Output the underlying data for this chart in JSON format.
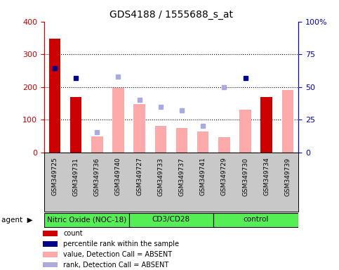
{
  "title": "GDS4188 / 1555688_s_at",
  "samples": [
    "GSM349725",
    "GSM349731",
    "GSM349736",
    "GSM349740",
    "GSM349727",
    "GSM349733",
    "GSM349737",
    "GSM349741",
    "GSM349729",
    "GSM349730",
    "GSM349734",
    "GSM349739"
  ],
  "red_bars": [
    348,
    170,
    0,
    0,
    0,
    0,
    0,
    0,
    0,
    0,
    170,
    0
  ],
  "pink_bars": [
    0,
    0,
    50,
    198,
    148,
    82,
    76,
    65,
    48,
    130,
    0,
    190
  ],
  "blue_squares": [
    258,
    228,
    0,
    0,
    0,
    0,
    0,
    0,
    0,
    228,
    0,
    0
  ],
  "lavender_squares": [
    0,
    0,
    62,
    232,
    162,
    140,
    128,
    82,
    200,
    0,
    0,
    0
  ],
  "groups": [
    {
      "label": "Nitric Oxide (NOC-18)",
      "start": 0,
      "end": 4,
      "color": "#55ee55"
    },
    {
      "label": "CD3/CD28",
      "start": 4,
      "end": 8,
      "color": "#55ee55"
    },
    {
      "label": "control",
      "start": 8,
      "end": 12,
      "color": "#55ee55"
    }
  ],
  "ylim_left": [
    0,
    400
  ],
  "ylim_right": [
    0,
    100
  ],
  "yticks_left": [
    0,
    100,
    200,
    300,
    400
  ],
  "yticks_right": [
    0,
    25,
    50,
    75,
    100
  ],
  "yticklabels_right": [
    "0",
    "25",
    "50",
    "75",
    "100%"
  ],
  "left_tick_color": "#cc0000",
  "right_tick_color": "#0000cc",
  "bar_width": 0.55,
  "red_color": "#cc0000",
  "pink_color": "#ffaaaa",
  "blue_color": "#00008B",
  "lavender_color": "#aaaadd",
  "bg_xtick": "#c8c8c8",
  "legend_labels": [
    "count",
    "percentile rank within the sample",
    "value, Detection Call = ABSENT",
    "rank, Detection Call = ABSENT"
  ],
  "legend_colors": [
    "#cc0000",
    "#00008B",
    "#ffaaaa",
    "#aaaadd"
  ],
  "grid_yticks": [
    100,
    200,
    300
  ]
}
